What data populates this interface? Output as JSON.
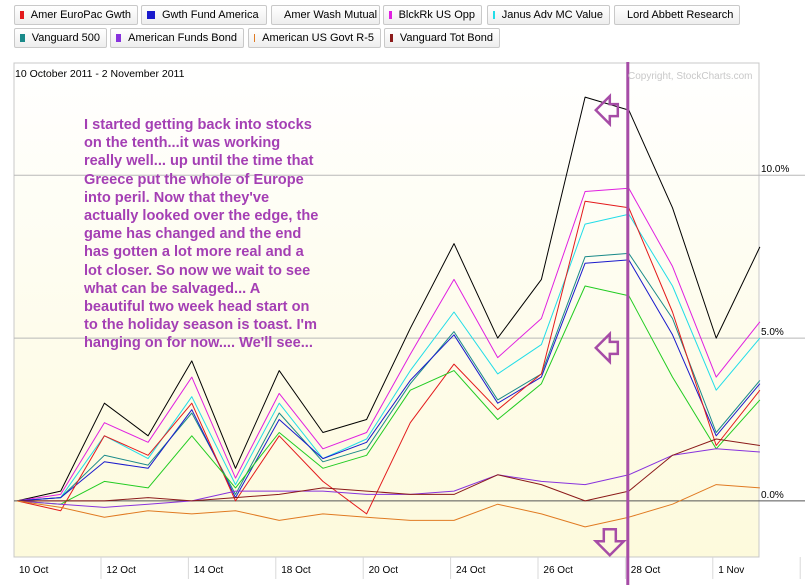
{
  "legend": [
    {
      "label": "Amer EuroPac Gwth",
      "color": "#e31a1c"
    },
    {
      "label": "Gwth Fund America",
      "color": "#1a1acc"
    },
    {
      "label": "Amer Wash Mutual",
      "color": "#22cc22"
    },
    {
      "label": "BlckRk US Opp",
      "color": "#e020e0"
    },
    {
      "label": "Janus Adv MC Value",
      "color": "#22dde8"
    },
    {
      "label": "Lord Abbett Research",
      "color": "#000000"
    },
    {
      "label": "Vanguard 500",
      "color": "#1a8a8a"
    },
    {
      "label": "American Funds Bond",
      "color": "#8833dd"
    },
    {
      "label": "American US Govt R-5",
      "color": "#e07a22"
    },
    {
      "label": "Vanguard Tot Bond",
      "color": "#8b1a1a"
    }
  ],
  "date_range": "10 October 2011 - 2 November 2011",
  "copyright": "Copyright, StockCharts.com",
  "annotation": "I started getting back into stocks on the tenth...it was working really well... up until the time that Greece put the whole of Europe into peril. Now that they've actually looked over the edge,  the game has changed and the end has gotten a lot more real and a lot closer. So now we wait to see what can be salvaged...  A beautiful two week head start on to the holiday season is toast.  I'm hanging on for now.... We'll see...",
  "annotation_color": "#a43fb4",
  "chart_data": {
    "type": "line",
    "x_tick_labels": [
      "10 Oct",
      "12 Oct",
      "14 Oct",
      "18 Oct",
      "20 Oct",
      "24 Oct",
      "26 Oct",
      "28 Oct",
      "1 Nov"
    ],
    "y_tick_labels": [
      "0.0%",
      "5.0%",
      "10.0%"
    ],
    "ylim": [
      -1.6,
      13.6
    ],
    "ylabel_side": "right",
    "grid": true,
    "x": [
      "10 Oct",
      "11 Oct",
      "12 Oct",
      "13 Oct",
      "14 Oct",
      "17 Oct",
      "18 Oct",
      "19 Oct",
      "20 Oct",
      "21 Oct",
      "24 Oct",
      "25 Oct",
      "26 Oct",
      "27 Oct",
      "28 Oct",
      "31 Oct",
      "1 Nov",
      "2 Nov"
    ],
    "series": [
      {
        "name": "Lord Abbett Research",
        "color": "#000000",
        "values": [
          0,
          0.3,
          3.0,
          2.0,
          4.3,
          1.0,
          4.0,
          2.1,
          2.5,
          5.3,
          7.9,
          5.0,
          6.8,
          12.4,
          12.0,
          9.0,
          5.0,
          7.8
        ]
      },
      {
        "name": "BlckRk US Opp",
        "color": "#e020e0",
        "values": [
          0,
          0.2,
          2.4,
          1.8,
          3.8,
          0.7,
          3.3,
          1.6,
          2.1,
          4.5,
          6.8,
          4.4,
          5.6,
          9.5,
          9.6,
          7.2,
          3.8,
          5.5
        ]
      },
      {
        "name": "Janus Adv MC Value",
        "color": "#22dde8",
        "values": [
          0,
          0.1,
          2.0,
          1.3,
          3.2,
          0.5,
          3.0,
          1.3,
          1.9,
          4.0,
          5.8,
          3.9,
          4.8,
          8.5,
          8.8,
          6.6,
          3.4,
          5.0
        ]
      },
      {
        "name": "Vanguard 500",
        "color": "#1a8a8a",
        "values": [
          0,
          0.1,
          1.4,
          1.1,
          2.7,
          0.2,
          2.7,
          1.2,
          1.6,
          3.6,
          5.2,
          3.1,
          3.9,
          7.5,
          7.6,
          5.6,
          2.1,
          3.7
        ]
      },
      {
        "name": "Gwth Fund America",
        "color": "#1a1acc",
        "values": [
          0,
          0.1,
          1.2,
          1.0,
          2.8,
          0.1,
          2.5,
          1.3,
          1.8,
          3.7,
          5.1,
          3.0,
          3.8,
          7.3,
          7.4,
          5.1,
          2.0,
          3.6
        ]
      },
      {
        "name": "Amer EuroPac Gwth",
        "color": "#e31a1c",
        "values": [
          0,
          -0.3,
          2.0,
          1.4,
          3.0,
          0.0,
          2.0,
          0.6,
          -0.4,
          2.4,
          4.2,
          2.8,
          3.9,
          9.2,
          9.0,
          5.8,
          1.7,
          3.4
        ]
      },
      {
        "name": "Amer Wash Mutual",
        "color": "#22cc22",
        "values": [
          0,
          -0.1,
          0.6,
          0.4,
          2.0,
          0.4,
          2.1,
          1.0,
          1.4,
          3.4,
          4.0,
          2.5,
          3.6,
          6.6,
          6.3,
          3.8,
          1.6,
          3.1
        ]
      },
      {
        "name": "American Funds Bond",
        "color": "#8833dd",
        "values": [
          0,
          -0.1,
          -0.2,
          -0.1,
          0.0,
          0.3,
          0.3,
          0.3,
          0.2,
          0.2,
          0.3,
          0.8,
          0.6,
          0.5,
          0.8,
          1.4,
          1.6,
          1.5
        ]
      },
      {
        "name": "Vanguard Tot Bond",
        "color": "#8b1a1a",
        "values": [
          0,
          0.0,
          0.0,
          0.1,
          0.0,
          0.1,
          0.2,
          0.4,
          0.3,
          0.2,
          0.2,
          0.8,
          0.5,
          0.0,
          0.3,
          1.4,
          1.9,
          1.7
        ]
      },
      {
        "name": "American US Govt R-5",
        "color": "#e07a22",
        "values": [
          0,
          -0.2,
          -0.5,
          -0.3,
          -0.4,
          -0.3,
          -0.6,
          -0.4,
          -0.5,
          -0.6,
          -0.6,
          -0.1,
          -0.4,
          -0.8,
          -0.5,
          -0.1,
          0.5,
          0.4
        ]
      }
    ],
    "marker_line": {
      "x": "28 Oct",
      "color": "#a64ca6"
    },
    "arrows": [
      {
        "direction": "left",
        "y": 12.0
      },
      {
        "direction": "left",
        "y": 4.7
      },
      {
        "direction": "down",
        "y": -1.3
      }
    ]
  }
}
